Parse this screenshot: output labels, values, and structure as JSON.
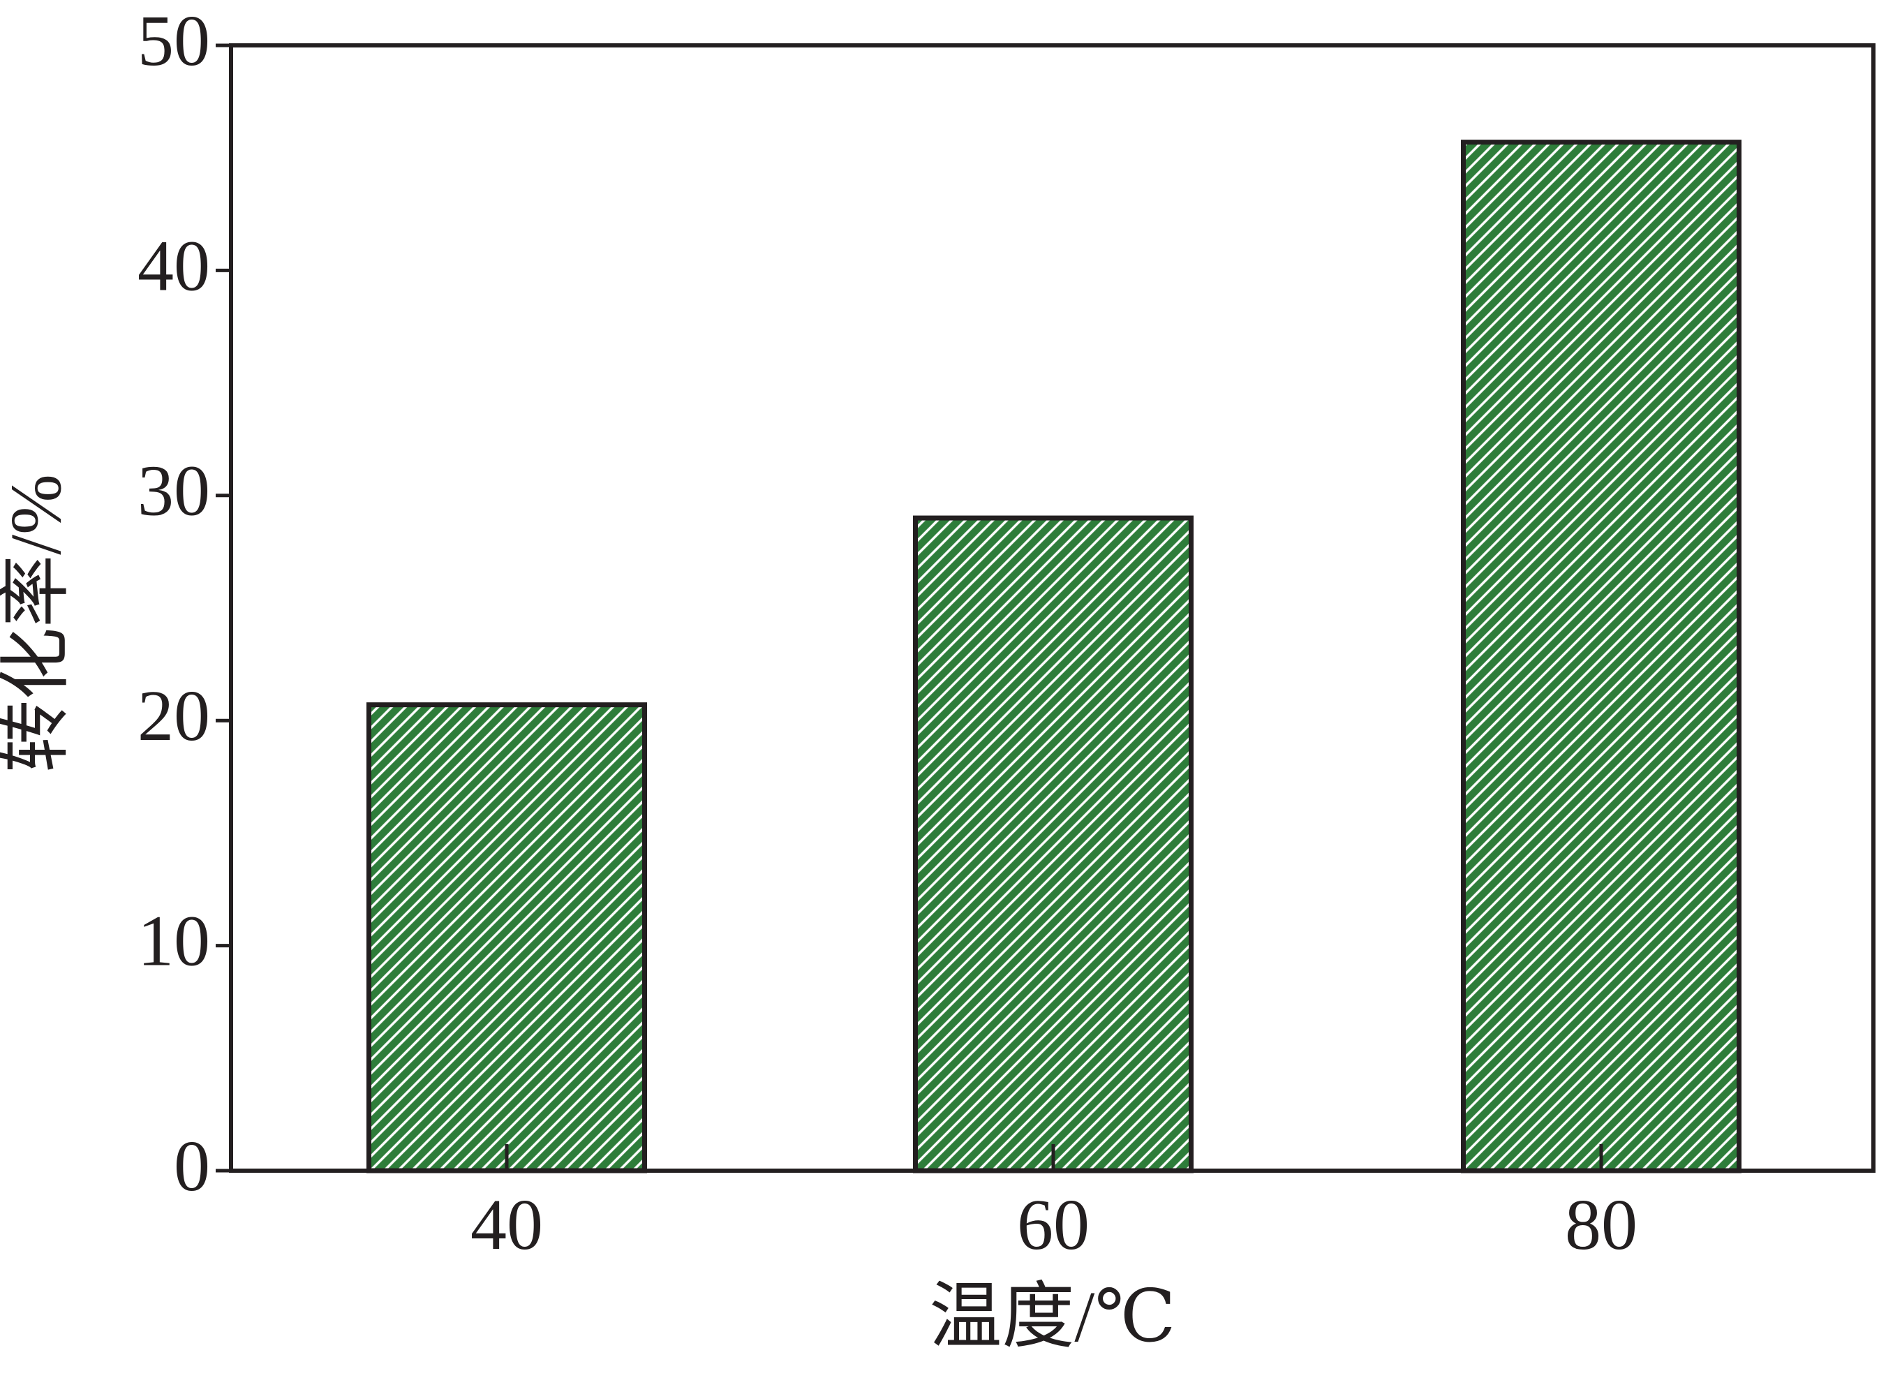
{
  "chart_data": {
    "type": "bar",
    "x_label": "温度/℃",
    "y_label": "转化率/%",
    "categories": [
      "40",
      "60",
      "80"
    ],
    "values": [
      20.7,
      29,
      45.7
    ],
    "color": "#2e7d3a",
    "ylim": [
      0,
      50
    ],
    "yticks": [
      0,
      10,
      20,
      30,
      40,
      50
    ],
    "grid": false
  }
}
